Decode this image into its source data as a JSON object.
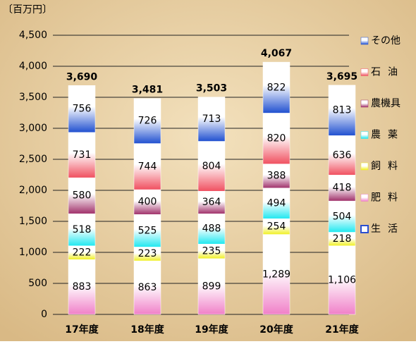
{
  "chart_data": {
    "type": "stacked_bar",
    "unit_label": "〔百万円〕",
    "categories": [
      "17年度",
      "18年度",
      "19年度",
      "20年度",
      "21年度"
    ],
    "series": [
      {
        "name": "生活",
        "color": "#2a4fd0",
        "values": [
          0,
          0,
          0,
          0,
          0
        ]
      },
      {
        "name": "肥料",
        "color": "#f080c8",
        "values": [
          883,
          863,
          899,
          1289,
          1106
        ],
        "value_labels": [
          "883",
          "863",
          "899",
          "1,289",
          "1,106"
        ]
      },
      {
        "name": "飼料",
        "color": "#f0f020",
        "values": [
          222,
          223,
          235,
          254,
          218
        ]
      },
      {
        "name": "農薬",
        "color": "#20e8f0",
        "values": [
          518,
          525,
          488,
          494,
          504
        ]
      },
      {
        "name": "農機具",
        "color": "#a0306a",
        "values": [
          580,
          400,
          364,
          388,
          418
        ]
      },
      {
        "name": "石油",
        "color": "#f05060",
        "values": [
          731,
          744,
          804,
          820,
          636
        ]
      },
      {
        "name": "その他",
        "color": "#2050d0",
        "values": [
          756,
          726,
          713,
          822,
          813
        ]
      }
    ],
    "total_labels": [
      "3,690",
      "3,481",
      "3,503",
      "4,067",
      "3,695"
    ],
    "ylim": [
      0,
      4500
    ],
    "yticks": [
      0,
      500,
      {
        "value": 1000,
        "label": "1,000"
      },
      {
        "value": 1500,
        "label": "1,500"
      },
      {
        "value": 2000,
        "label": "2,000"
      },
      {
        "value": 2500,
        "label": "2,500"
      },
      {
        "value": 3000,
        "label": "3,000"
      },
      {
        "value": 3500,
        "label": "3,500"
      },
      {
        "value": 4000,
        "label": "4,000"
      },
      {
        "value": 4500,
        "label": "4,500"
      }
    ],
    "grid": true
  }
}
